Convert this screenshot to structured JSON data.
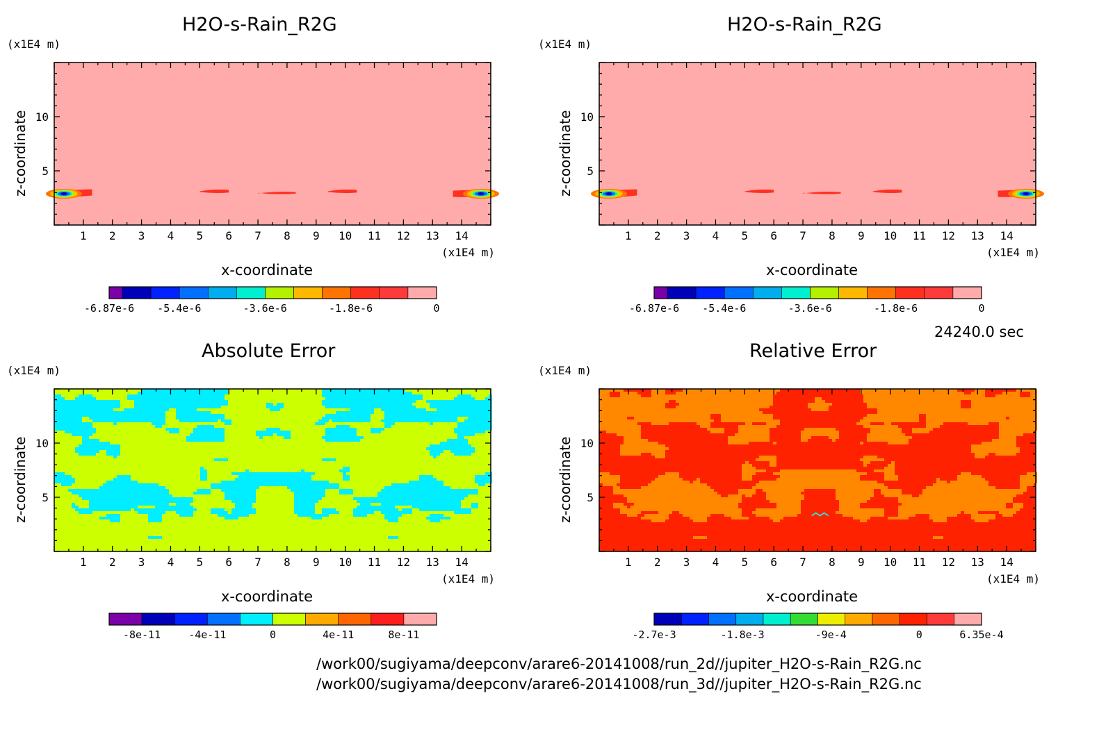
{
  "panels": [
    {
      "id": "p1",
      "title": "H2O-s-Rain_R2G",
      "y_unit": "(x1E4 m)",
      "x_unit": "(x1E4 m)",
      "ylabel": "z-coordinate",
      "xlabel": "x-coordinate",
      "background_color": "#FFABAB",
      "colorbar": {
        "colors": [
          "#7B00A8",
          "#0000B8",
          "#0022FF",
          "#0070FF",
          "#00ADEE",
          "#00EFD0",
          "#B4F000",
          "#FFB800",
          "#FF7300",
          "#FF3020",
          "#FF3A3A",
          "#FFABAB"
        ],
        "tick_labels": [
          "-6.87e-6",
          "-5.4e-6",
          "-3.6e-6",
          "-1.8e-6",
          "0"
        ],
        "tick_values": [
          -6.87e-06,
          -5.4e-06,
          -3.6e-06,
          -1.8e-06,
          0
        ],
        "range": [
          -6.87e-06,
          0
        ]
      }
    },
    {
      "id": "p2",
      "title": "H2O-s-Rain_R2G",
      "y_unit": "(x1E4 m)",
      "x_unit": "(x1E4 m)",
      "ylabel": "z-coordinate",
      "xlabel": "x-coordinate",
      "background_color": "#FFABAB",
      "colorbar": {
        "colors": [
          "#7B00A8",
          "#0000B8",
          "#0022FF",
          "#0070FF",
          "#00ADEE",
          "#00EFD0",
          "#B4F000",
          "#FFB800",
          "#FF7300",
          "#FF3020",
          "#FF3A3A",
          "#FFABAB"
        ],
        "tick_labels": [
          "-6.87e-6",
          "-5.4e-6",
          "-3.6e-6",
          "-1.8e-6",
          "0"
        ],
        "tick_values": [
          -6.87e-06,
          -5.4e-06,
          -3.6e-06,
          -1.8e-06,
          0
        ],
        "range": [
          -6.87e-06,
          0
        ]
      }
    },
    {
      "id": "p3",
      "title": "Absolute Error",
      "y_unit": "(x1E4 m)",
      "x_unit": "(x1E4 m)",
      "ylabel": "z-coordinate",
      "xlabel": "x-coordinate",
      "background_color": "#CCFF00",
      "colorbar": {
        "colors": [
          "#7B00A8",
          "#0000B8",
          "#0022FF",
          "#0070FF",
          "#00EEFF",
          "#CCFF00",
          "#FFAA00",
          "#FF6600",
          "#FF1E1E",
          "#FFABAB"
        ],
        "tick_labels": [
          "-8e-11",
          "-4e-11",
          "0",
          "4e-11",
          "8e-11"
        ],
        "tick_values": [
          -8e-11,
          -4e-11,
          0,
          4e-11,
          8e-11
        ],
        "range": [
          -1e-10,
          1e-10
        ]
      }
    },
    {
      "id": "p4",
      "title": "Relative Error",
      "y_unit": "(x1E4 m)",
      "x_unit": "(x1E4 m)",
      "ylabel": "z-coordinate",
      "xlabel": "x-coordinate",
      "background_color": "#FF2200",
      "colorbar": {
        "colors": [
          "#0000B8",
          "#0022FF",
          "#0070FF",
          "#00ADEE",
          "#00EFD0",
          "#33DD33",
          "#EEEE00",
          "#FFAA00",
          "#FF6600",
          "#FF2200",
          "#FF3A3A",
          "#FFABAB"
        ],
        "tick_labels": [
          "-2.7e-3",
          "-1.8e-3",
          "-9e-4",
          "0",
          "6.35e-4"
        ],
        "tick_values": [
          -0.0027,
          -0.0018,
          -0.0009,
          0,
          0.000635
        ],
        "range": [
          -0.0027,
          0.000635
        ]
      }
    }
  ],
  "chart_data": [
    {
      "type": "heatmap",
      "title": "H2O-s-Rain_R2G",
      "xlabel": "x-coordinate",
      "ylabel": "z-coordinate",
      "xunit": "(x1E4 m)",
      "yunit": "(x1E4 m)",
      "xlim": [
        0,
        15
      ],
      "ylim": [
        0,
        15
      ],
      "xticks": [
        1,
        2,
        3,
        4,
        5,
        6,
        7,
        8,
        9,
        10,
        11,
        12,
        13,
        14
      ],
      "yticks": [
        5,
        10
      ],
      "features": [
        {
          "x": [
            0,
            1.3
          ],
          "z": [
            2.6,
            3.3
          ],
          "min_value": -6.87e-06
        },
        {
          "x": [
            5,
            6
          ],
          "z": [
            3.0,
            3.3
          ]
        },
        {
          "x": [
            7,
            8.3
          ],
          "z": [
            2.9,
            3.1
          ]
        },
        {
          "x": [
            9.4,
            10.4
          ],
          "z": [
            3.0,
            3.3
          ]
        },
        {
          "x": [
            13.7,
            15
          ],
          "z": [
            2.6,
            3.3
          ],
          "min_value": -6.87e-06
        }
      ]
    },
    {
      "type": "heatmap",
      "title": "H2O-s-Rain_R2G",
      "xlabel": "x-coordinate",
      "ylabel": "z-coordinate",
      "xunit": "(x1E4 m)",
      "yunit": "(x1E4 m)",
      "xlim": [
        0,
        15
      ],
      "ylim": [
        0,
        15
      ],
      "xticks": [
        1,
        2,
        3,
        4,
        5,
        6,
        7,
        8,
        9,
        10,
        11,
        12,
        13,
        14
      ],
      "yticks": [
        5,
        10
      ],
      "features": [
        {
          "x": [
            0,
            1.3
          ],
          "z": [
            2.6,
            3.3
          ],
          "min_value": -6.87e-06
        },
        {
          "x": [
            5,
            6
          ],
          "z": [
            3.0,
            3.3
          ]
        },
        {
          "x": [
            7,
            8.3
          ],
          "z": [
            2.9,
            3.1
          ]
        },
        {
          "x": [
            9.4,
            10.4
          ],
          "z": [
            3.0,
            3.3
          ]
        },
        {
          "x": [
            13.7,
            15
          ],
          "z": [
            2.6,
            3.3
          ],
          "min_value": -6.87e-06
        }
      ]
    },
    {
      "type": "heatmap",
      "title": "Absolute Error",
      "xlabel": "x-coordinate",
      "ylabel": "z-coordinate",
      "xunit": "(x1E4 m)",
      "yunit": "(x1E4 m)",
      "xlim": [
        0,
        15
      ],
      "ylim": [
        0,
        15
      ],
      "xticks": [
        1,
        2,
        3,
        4,
        5,
        6,
        7,
        8,
        9,
        10,
        11,
        12,
        13,
        14
      ],
      "yticks": [
        5,
        10
      ],
      "dominant_value_range": [
        0,
        2e-11
      ],
      "secondary_value_range": [
        -2e-11,
        0
      ]
    },
    {
      "type": "heatmap",
      "title": "Relative Error",
      "xlabel": "x-coordinate",
      "ylabel": "z-coordinate",
      "xunit": "(x1E4 m)",
      "yunit": "(x1E4 m)",
      "xlim": [
        0,
        15
      ],
      "ylim": [
        0,
        15
      ],
      "xticks": [
        1,
        2,
        3,
        4,
        5,
        6,
        7,
        8,
        9,
        10,
        11,
        12,
        13,
        14
      ],
      "yticks": [
        5,
        10
      ],
      "dominant_value_range": [
        -3e-07,
        0
      ],
      "secondary_value_range": [
        -0.0003,
        -3e-07
      ]
    }
  ],
  "time_label": "24240.0 sec",
  "footer_lines": [
    "/work00/sugiyama/deepconv/arare6-20141008/run_2d//jupiter_H2O-s-Rain_R2G.nc",
    "/work00/sugiyama/deepconv/arare6-20141008/run_3d//jupiter_H2O-s-Rain_R2G.nc"
  ]
}
